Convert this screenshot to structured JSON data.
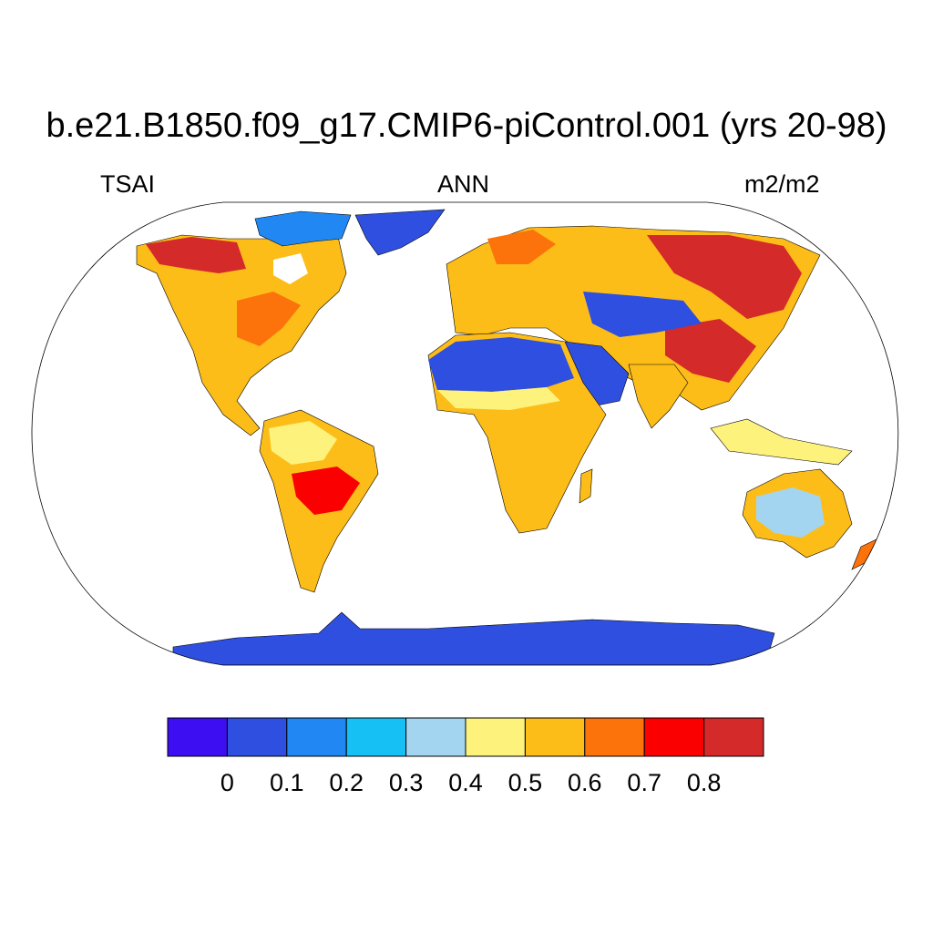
{
  "title": "b.e21.B1850.f09_g17.CMIP6-piControl.001 (yrs 20-98)",
  "left_label": "TSAI",
  "center_label": "ANN",
  "right_label": "m2/m2",
  "colorbar": {
    "colors": [
      "#3e0ef2",
      "#2e4fdf",
      "#2188f3",
      "#16c0f5",
      "#a3d5f1",
      "#fdf27c",
      "#fdbd18",
      "#fc720b",
      "#fb0000",
      "#d42a2a"
    ],
    "tick_labels": [
      "0",
      "0.1",
      "0.2",
      "0.3",
      "0.4",
      "0.5",
      "0.6",
      "0.7",
      "0.8"
    ]
  }
}
